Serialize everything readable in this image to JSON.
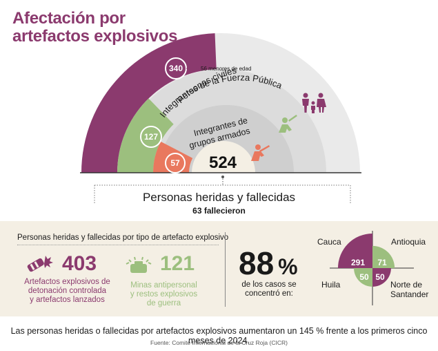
{
  "title_line1": "Afectación por",
  "title_line2": "artefactos explosivos",
  "colors": {
    "purple": "#8b3a6e",
    "green": "#9cbf7e",
    "orange": "#e9785e",
    "cream": "#f4efe4",
    "grey": "#e6e6e6",
    "lightgrey": "#d6d6d6"
  },
  "semicircle": {
    "civiles_label": "Personas civiles",
    "civiles_value": "340",
    "civiles_note": "56 menores de edad",
    "fuerza_label": "Integrantes de la Fuerza Pública",
    "fuerza_value": "127",
    "grupos_label_1": "Integrantes de",
    "grupos_label_2": "grupos armados",
    "grupos_value": "57",
    "total": "524",
    "total_label": "Personas heridas y fallecidas",
    "fallecieron": "63 fallecieron"
  },
  "by_type": {
    "section_title": "Personas heridas y fallecidas por tipo de artefacto explosivo",
    "aedc_value": "403",
    "aedc_caption_1": "Artefactos explosivos de",
    "aedc_caption_2": "detonación controlada",
    "aedc_caption_3": "y artefactos lanzados",
    "map_value": "121",
    "map_caption_1": "Minas antipersonal",
    "map_caption_2": "y restos explosivos",
    "map_caption_3": "de guerra"
  },
  "concentration": {
    "pct_value": "88",
    "pct_symbol": "%",
    "caption_1": "de los casos se",
    "caption_2": "concentró en:",
    "cauca_label": "Cauca",
    "cauca_value": "291",
    "antioquia_label": "Antioquia",
    "antioquia_value": "71",
    "huila_label": "Huila",
    "huila_value": "50",
    "nds_label_1": "Norte de",
    "nds_label_2": "Santander",
    "nds_value": "50"
  },
  "footer": {
    "text": "Las personas heridas o fallecidas por artefactos explosivos aumentaron un 145 % frente a los primeros cinco meses de 2024.",
    "source": "Fuente:  Comité Internacional de la Cruz Roja (CICR)"
  },
  "chart_data": [
    {
      "type": "pie",
      "title": "Afectación por artefactos explosivos",
      "categories": [
        "Personas civiles",
        "Integrantes de la Fuerza Pública",
        "Integrantes de grupos armados"
      ],
      "values": [
        340,
        127,
        57
      ],
      "total": 524
    },
    {
      "type": "bar",
      "title": "Personas heridas y fallecidas por tipo de artefacto explosivo",
      "categories": [
        "Artefactos explosivos de detonación controlada y artefactos lanzados",
        "Minas antipersonal y restos explosivos de guerra"
      ],
      "values": [
        403,
        121
      ]
    },
    {
      "type": "pie",
      "categories": [
        "Cauca",
        "Antioquia",
        "Huila",
        "Norte de Santander"
      ],
      "values": [
        291,
        71,
        50,
        50
      ]
    }
  ]
}
